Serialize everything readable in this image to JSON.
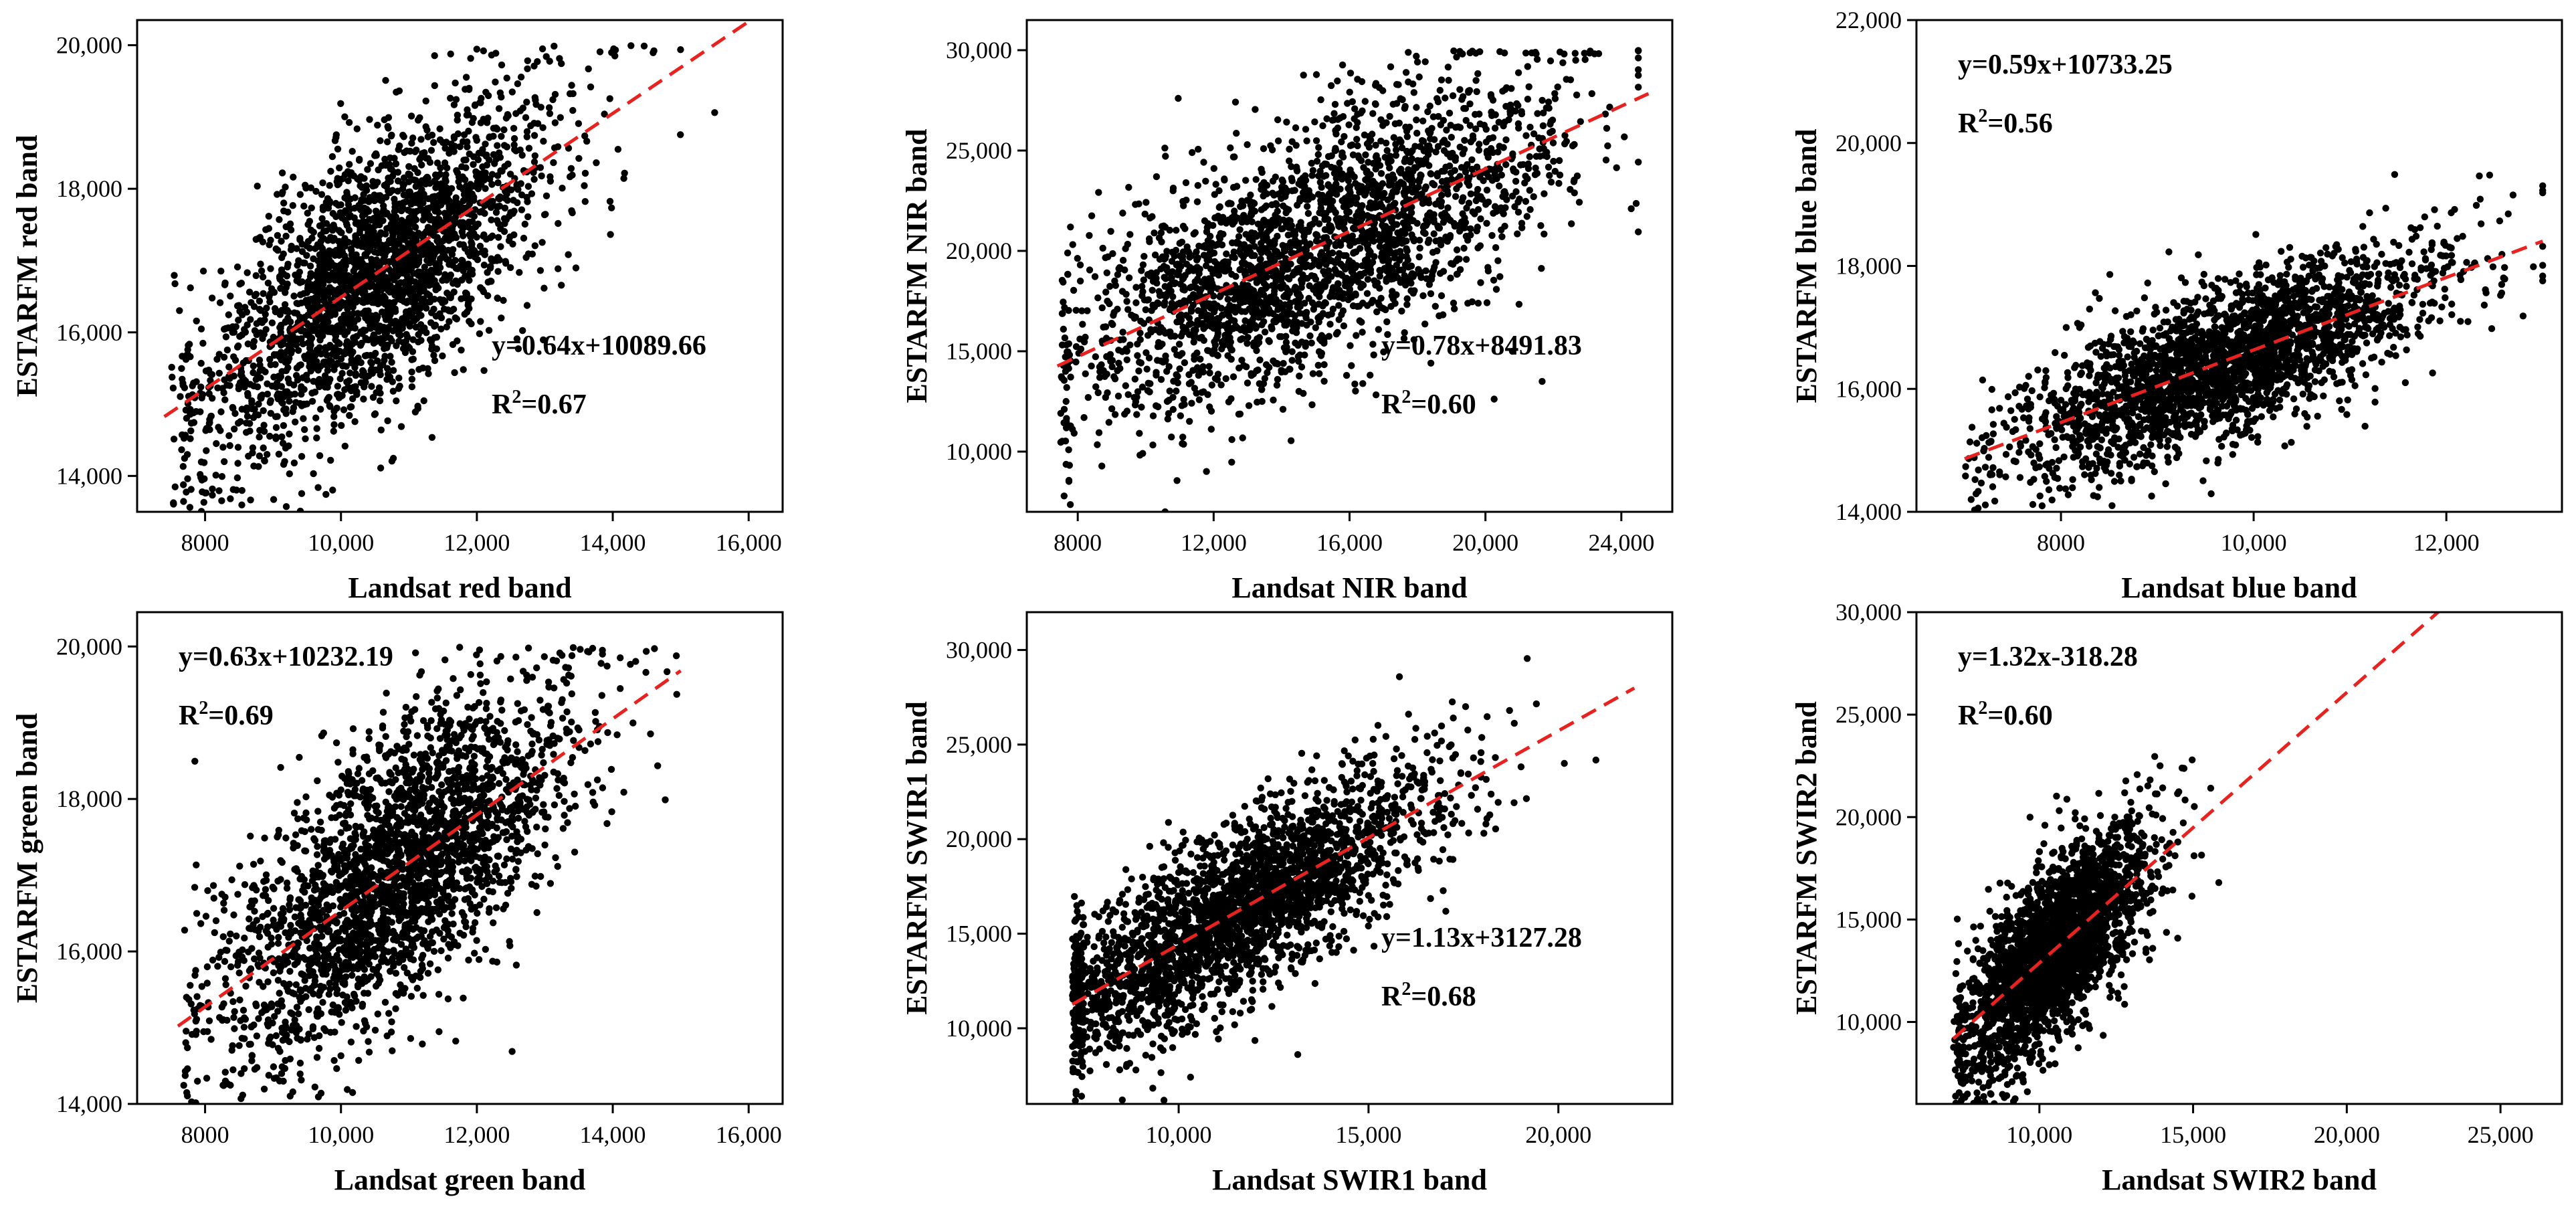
{
  "chart_data": [
    {
      "type": "scatter",
      "xlabel": "Landsat red band",
      "ylabel": "ESTARFM red band",
      "xlim": [
        7000,
        16500
      ],
      "ylim": [
        13500,
        20350
      ],
      "xticks": [
        8000,
        10000,
        12000,
        14000,
        16000
      ],
      "xtick_labels": [
        "8000",
        "10,000",
        "12,000",
        "14,000",
        "16,000"
      ],
      "yticks": [
        14000,
        16000,
        18000,
        20000
      ],
      "ytick_labels": [
        "14,000",
        "16,000",
        "18,000",
        "20,000"
      ],
      "fit": {
        "slope": 0.64,
        "intercept": 10089.66,
        "x_range": [
          7400,
          16000
        ]
      },
      "equation": "y=0.64x+10089.66",
      "r2_prefix": "R",
      "r2_exp": "2",
      "r2_value": "=0.67",
      "annotation_position": "bottom-right",
      "cloud": {
        "x": [
          7500,
          15500
        ],
        "center": [
          10500,
          16800
        ],
        "spread": [
          1250,
          1200
        ],
        "cap": 20000
      }
    },
    {
      "type": "scatter",
      "xlabel": "Landsat NIR band",
      "ylabel": "ESTARFM NIR band",
      "xlim": [
        6500,
        25500
      ],
      "ylim": [
        7000,
        31500
      ],
      "xticks": [
        8000,
        12000,
        16000,
        20000,
        24000
      ],
      "xtick_labels": [
        "8000",
        "12,000",
        "16,000",
        "20,000",
        "24,000"
      ],
      "yticks": [
        10000,
        15000,
        20000,
        25000,
        30000
      ],
      "ytick_labels": [
        "10,000",
        "15,000",
        "20,000",
        "25,000",
        "30,000"
      ],
      "fit": {
        "slope": 0.78,
        "intercept": 8491.83,
        "x_range": [
          7400,
          24800
        ]
      },
      "equation": "y=0.78x+8491.83",
      "r2_prefix": "R",
      "r2_exp": "2",
      "r2_value": "=0.60",
      "annotation_position": "bottom-right",
      "cloud": {
        "x": [
          7500,
          24500
        ],
        "center": [
          15000,
          20000
        ],
        "spread": [
          3500,
          4000
        ],
        "cap": 30000
      }
    },
    {
      "type": "scatter",
      "xlabel": "Landsat blue band",
      "ylabel": "ESTARFM blue band",
      "xlim": [
        6500,
        13200
      ],
      "ylim": [
        14000,
        22000
      ],
      "xticks": [
        8000,
        10000,
        12000
      ],
      "xtick_labels": [
        "8000",
        "10,000",
        "12,000"
      ],
      "yticks": [
        14000,
        16000,
        18000,
        20000,
        22000
      ],
      "ytick_labels": [
        "14,000",
        "16,000",
        "18,000",
        "20,000",
        "22,000"
      ],
      "fit": {
        "slope": 0.59,
        "intercept": 10733.25,
        "x_range": [
          7000,
          13000
        ]
      },
      "equation": "y=0.59x+10733.25",
      "r2_prefix": "R",
      "r2_exp": "2",
      "r2_value": "=0.56",
      "annotation_position": "top-left",
      "cloud": {
        "x": [
          7000,
          13000
        ],
        "center": [
          9700,
          16600
        ],
        "spread": [
          1100,
          800
        ],
        "cap": 21000
      }
    },
    {
      "type": "scatter",
      "xlabel": "Landsat green band",
      "ylabel": "ESTARFM green band",
      "xlim": [
        7000,
        16500
      ],
      "ylim": [
        14000,
        20450
      ],
      "xticks": [
        8000,
        10000,
        12000,
        14000,
        16000
      ],
      "xtick_labels": [
        "8000",
        "10,000",
        "12,000",
        "14,000",
        "16,000"
      ],
      "yticks": [
        14000,
        16000,
        18000,
        20000
      ],
      "ytick_labels": [
        "14,000",
        "16,000",
        "18,000",
        "20,000"
      ],
      "fit": {
        "slope": 0.63,
        "intercept": 10232.19,
        "x_range": [
          7600,
          15000
        ]
      },
      "equation": "y=0.63x+10232.19",
      "r2_prefix": "R",
      "r2_exp": "2",
      "r2_value": "=0.69",
      "annotation_position": "top-left",
      "cloud": {
        "x": [
          7600,
          15100
        ],
        "center": [
          10800,
          17000
        ],
        "spread": [
          1300,
          1200
        ],
        "cap": 20000
      }
    },
    {
      "type": "scatter",
      "xlabel": "Landsat SWIR1 band",
      "ylabel": "ESTARFM SWIR1 band",
      "xlim": [
        6000,
        23000
      ],
      "ylim": [
        6000,
        32000
      ],
      "xticks": [
        10000,
        15000,
        20000
      ],
      "xtick_labels": [
        "10,000",
        "15,000",
        "20,000"
      ],
      "yticks": [
        10000,
        15000,
        20000,
        25000,
        30000
      ],
      "ytick_labels": [
        "10,000",
        "15,000",
        "20,000",
        "25,000",
        "30,000"
      ],
      "fit": {
        "slope": 1.13,
        "intercept": 3127.28,
        "x_range": [
          7200,
          22000
        ]
      },
      "equation": "y=1.13x+3127.28",
      "r2_prefix": "R",
      "r2_exp": "2",
      "r2_value": "=0.68",
      "annotation_position": "bottom-right",
      "cloud": {
        "x": [
          7200,
          22000
        ],
        "center": [
          11500,
          16500
        ],
        "spread": [
          2700,
          3000
        ],
        "cap": 30000
      }
    },
    {
      "type": "scatter",
      "xlabel": "Landsat SWIR2 band",
      "ylabel": "ESTARFM SWIR2 band",
      "xlim": [
        6000,
        27000
      ],
      "ylim": [
        6000,
        30000
      ],
      "xticks": [
        10000,
        15000,
        20000,
        25000
      ],
      "xtick_labels": [
        "10,000",
        "15,000",
        "20,000",
        "25,000"
      ],
      "yticks": [
        10000,
        15000,
        20000,
        25000,
        30000
      ],
      "ytick_labels": [
        "10,000",
        "15,000",
        "20,000",
        "25,000",
        "30,000"
      ],
      "fit": {
        "slope": 1.32,
        "intercept": -318.28,
        "x_range": [
          7200,
          23100
        ]
      },
      "equation": "y=1.32x-318.28",
      "r2_prefix": "R",
      "r2_exp": "2",
      "r2_value": "=0.60",
      "annotation_position": "top-left",
      "cloud": {
        "x": [
          7200,
          25500
        ],
        "center": [
          10500,
          13500
        ],
        "spread": [
          1500,
          2800
        ],
        "cap": 27000
      }
    }
  ],
  "colors": {
    "points": "#000000",
    "fit_line": "#e8221f",
    "frame": "#000000",
    "background": "#ffffff"
  }
}
